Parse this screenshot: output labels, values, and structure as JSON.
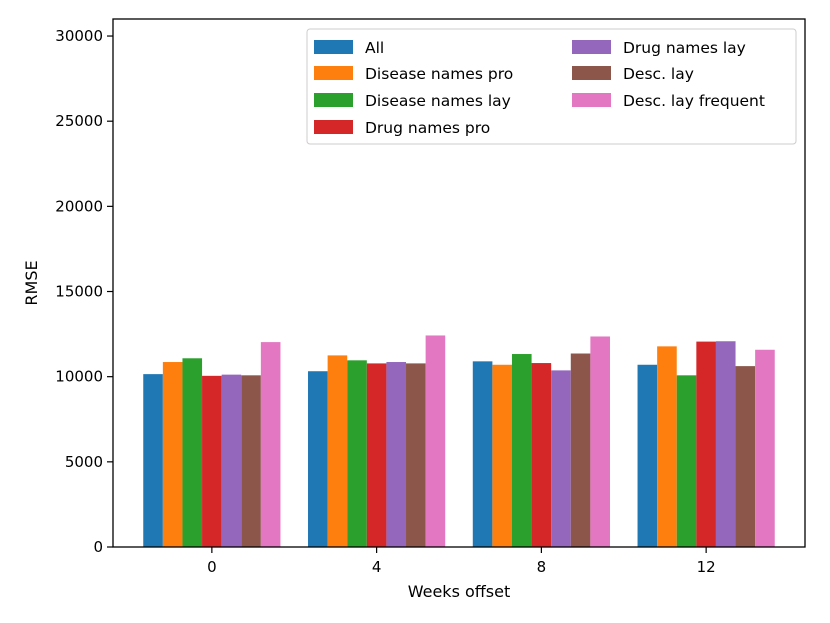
{
  "chart_data": {
    "type": "bar",
    "title": "",
    "xlabel": "Weeks offset",
    "ylabel": "RMSE",
    "ylim": [
      0,
      31000
    ],
    "yticks": [
      0,
      5000,
      10000,
      15000,
      20000,
      25000,
      30000
    ],
    "categories": [
      "0",
      "4",
      "8",
      "12"
    ],
    "legend_position": "top-right",
    "series": [
      {
        "name": "All",
        "color": "#1f77b4",
        "values": [
          10150,
          10320,
          10900,
          10700
        ]
      },
      {
        "name": "Disease names pro",
        "color": "#ff7f0e",
        "values": [
          10860,
          11250,
          10700,
          11780
        ]
      },
      {
        "name": "Disease names lay",
        "color": "#2ca02c",
        "values": [
          11080,
          10960,
          11330,
          10080
        ]
      },
      {
        "name": "Drug names pro",
        "color": "#d62728",
        "values": [
          10050,
          10780,
          10800,
          12060
        ]
      },
      {
        "name": "Drug names lay",
        "color": "#9467bd",
        "values": [
          10120,
          10860,
          10370,
          12080
        ]
      },
      {
        "name": "Desc. lay",
        "color": "#8c564b",
        "values": [
          10080,
          10780,
          11360,
          10620
        ]
      },
      {
        "name": "Desc. lay frequent",
        "color": "#e377c2",
        "values": [
          12030,
          12420,
          12360,
          11580
        ]
      }
    ]
  }
}
